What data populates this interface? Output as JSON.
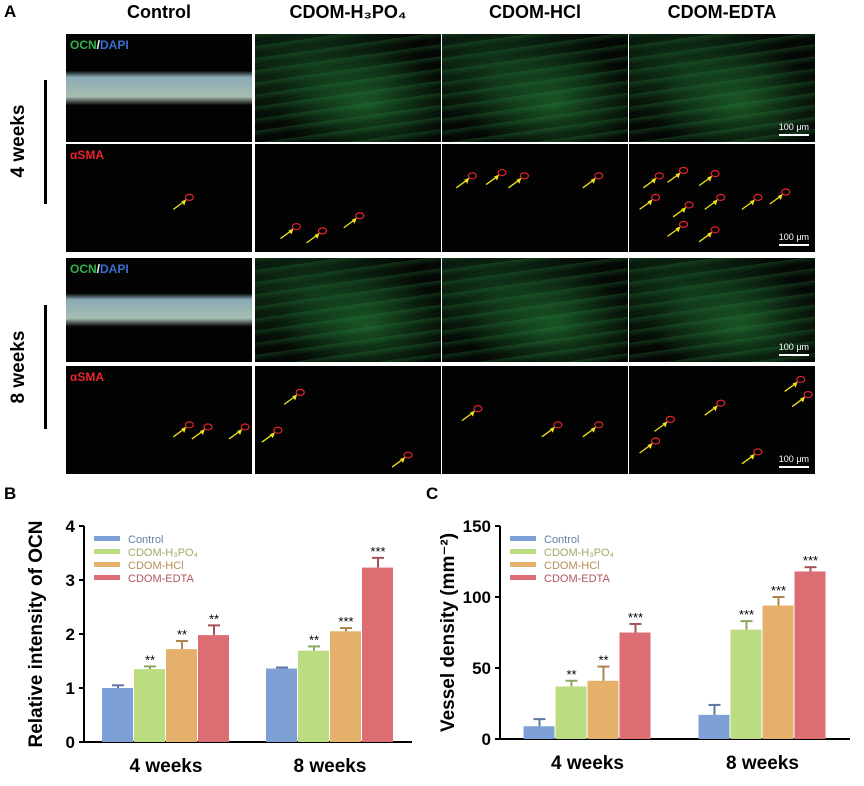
{
  "panel_a": {
    "letter": "A",
    "columns": [
      "Control",
      "CDOM-H₃PO₄",
      "CDOM-HCl",
      "CDOM-EDTA"
    ],
    "row_groups": [
      "4 weeks",
      "8 weeks"
    ],
    "stain_ocn_a": "OCN",
    "stain_ocn_sep": "/",
    "stain_ocn_b": "DAPI",
    "stain_sma": "αSMA",
    "scale_bar": "100 μm",
    "colors": {
      "ocn": "#2db34a",
      "dapi": "#3a6fd0",
      "sma": "#e8252b",
      "arrow": "#f2e21c"
    }
  },
  "chart_data": [
    {
      "panel": "B",
      "type": "bar",
      "ylabel": "Relative intensity of OCN",
      "ylim": [
        0,
        4
      ],
      "yticks": [
        "0",
        "1",
        "2",
        "3",
        "4"
      ],
      "categories": [
        "4 weeks",
        "8 weeks"
      ],
      "series": [
        {
          "name": "Control",
          "color": "#7ea0d6",
          "values": [
            1.0,
            1.36
          ],
          "errors": [
            0.05,
            0.02
          ],
          "sig": [
            "",
            ""
          ]
        },
        {
          "name": "CDOM-H₃PO₄",
          "color": "#bcdc82",
          "values": [
            1.35,
            1.69
          ],
          "errors": [
            0.05,
            0.08
          ],
          "sig": [
            "**",
            "**"
          ]
        },
        {
          "name": "CDOM-HCl",
          "color": "#e4b06c",
          "values": [
            1.72,
            2.05
          ],
          "errors": [
            0.15,
            0.06
          ],
          "sig": [
            "**",
            "***"
          ]
        },
        {
          "name": "CDOM-EDTA",
          "color": "#dc6e73",
          "values": [
            1.98,
            3.23
          ],
          "errors": [
            0.18,
            0.18
          ],
          "sig": [
            "**",
            "***"
          ]
        }
      ]
    },
    {
      "panel": "C",
      "type": "bar",
      "ylabel": "Vessel density (mm⁻²)",
      "ylim": [
        0,
        150
      ],
      "yticks": [
        "0",
        "50",
        "100",
        "150"
      ],
      "categories": [
        "4 weeks",
        "8 weeks"
      ],
      "series": [
        {
          "name": "Control",
          "color": "#7ea0d6",
          "values": [
            9,
            17
          ],
          "errors": [
            5,
            7
          ],
          "sig": [
            "",
            ""
          ]
        },
        {
          "name": "CDOM-H₃PO₄",
          "color": "#bcdc82",
          "values": [
            37,
            77
          ],
          "errors": [
            4,
            6
          ],
          "sig": [
            "**",
            "***"
          ]
        },
        {
          "name": "CDOM-HCl",
          "color": "#e4b06c",
          "values": [
            41,
            94
          ],
          "errors": [
            10,
            6
          ],
          "sig": [
            "**",
            "***"
          ]
        },
        {
          "name": "CDOM-EDTA",
          "color": "#dc6e73",
          "values": [
            75,
            118
          ],
          "errors": [
            6,
            3
          ],
          "sig": [
            "***",
            "***"
          ]
        }
      ]
    }
  ]
}
